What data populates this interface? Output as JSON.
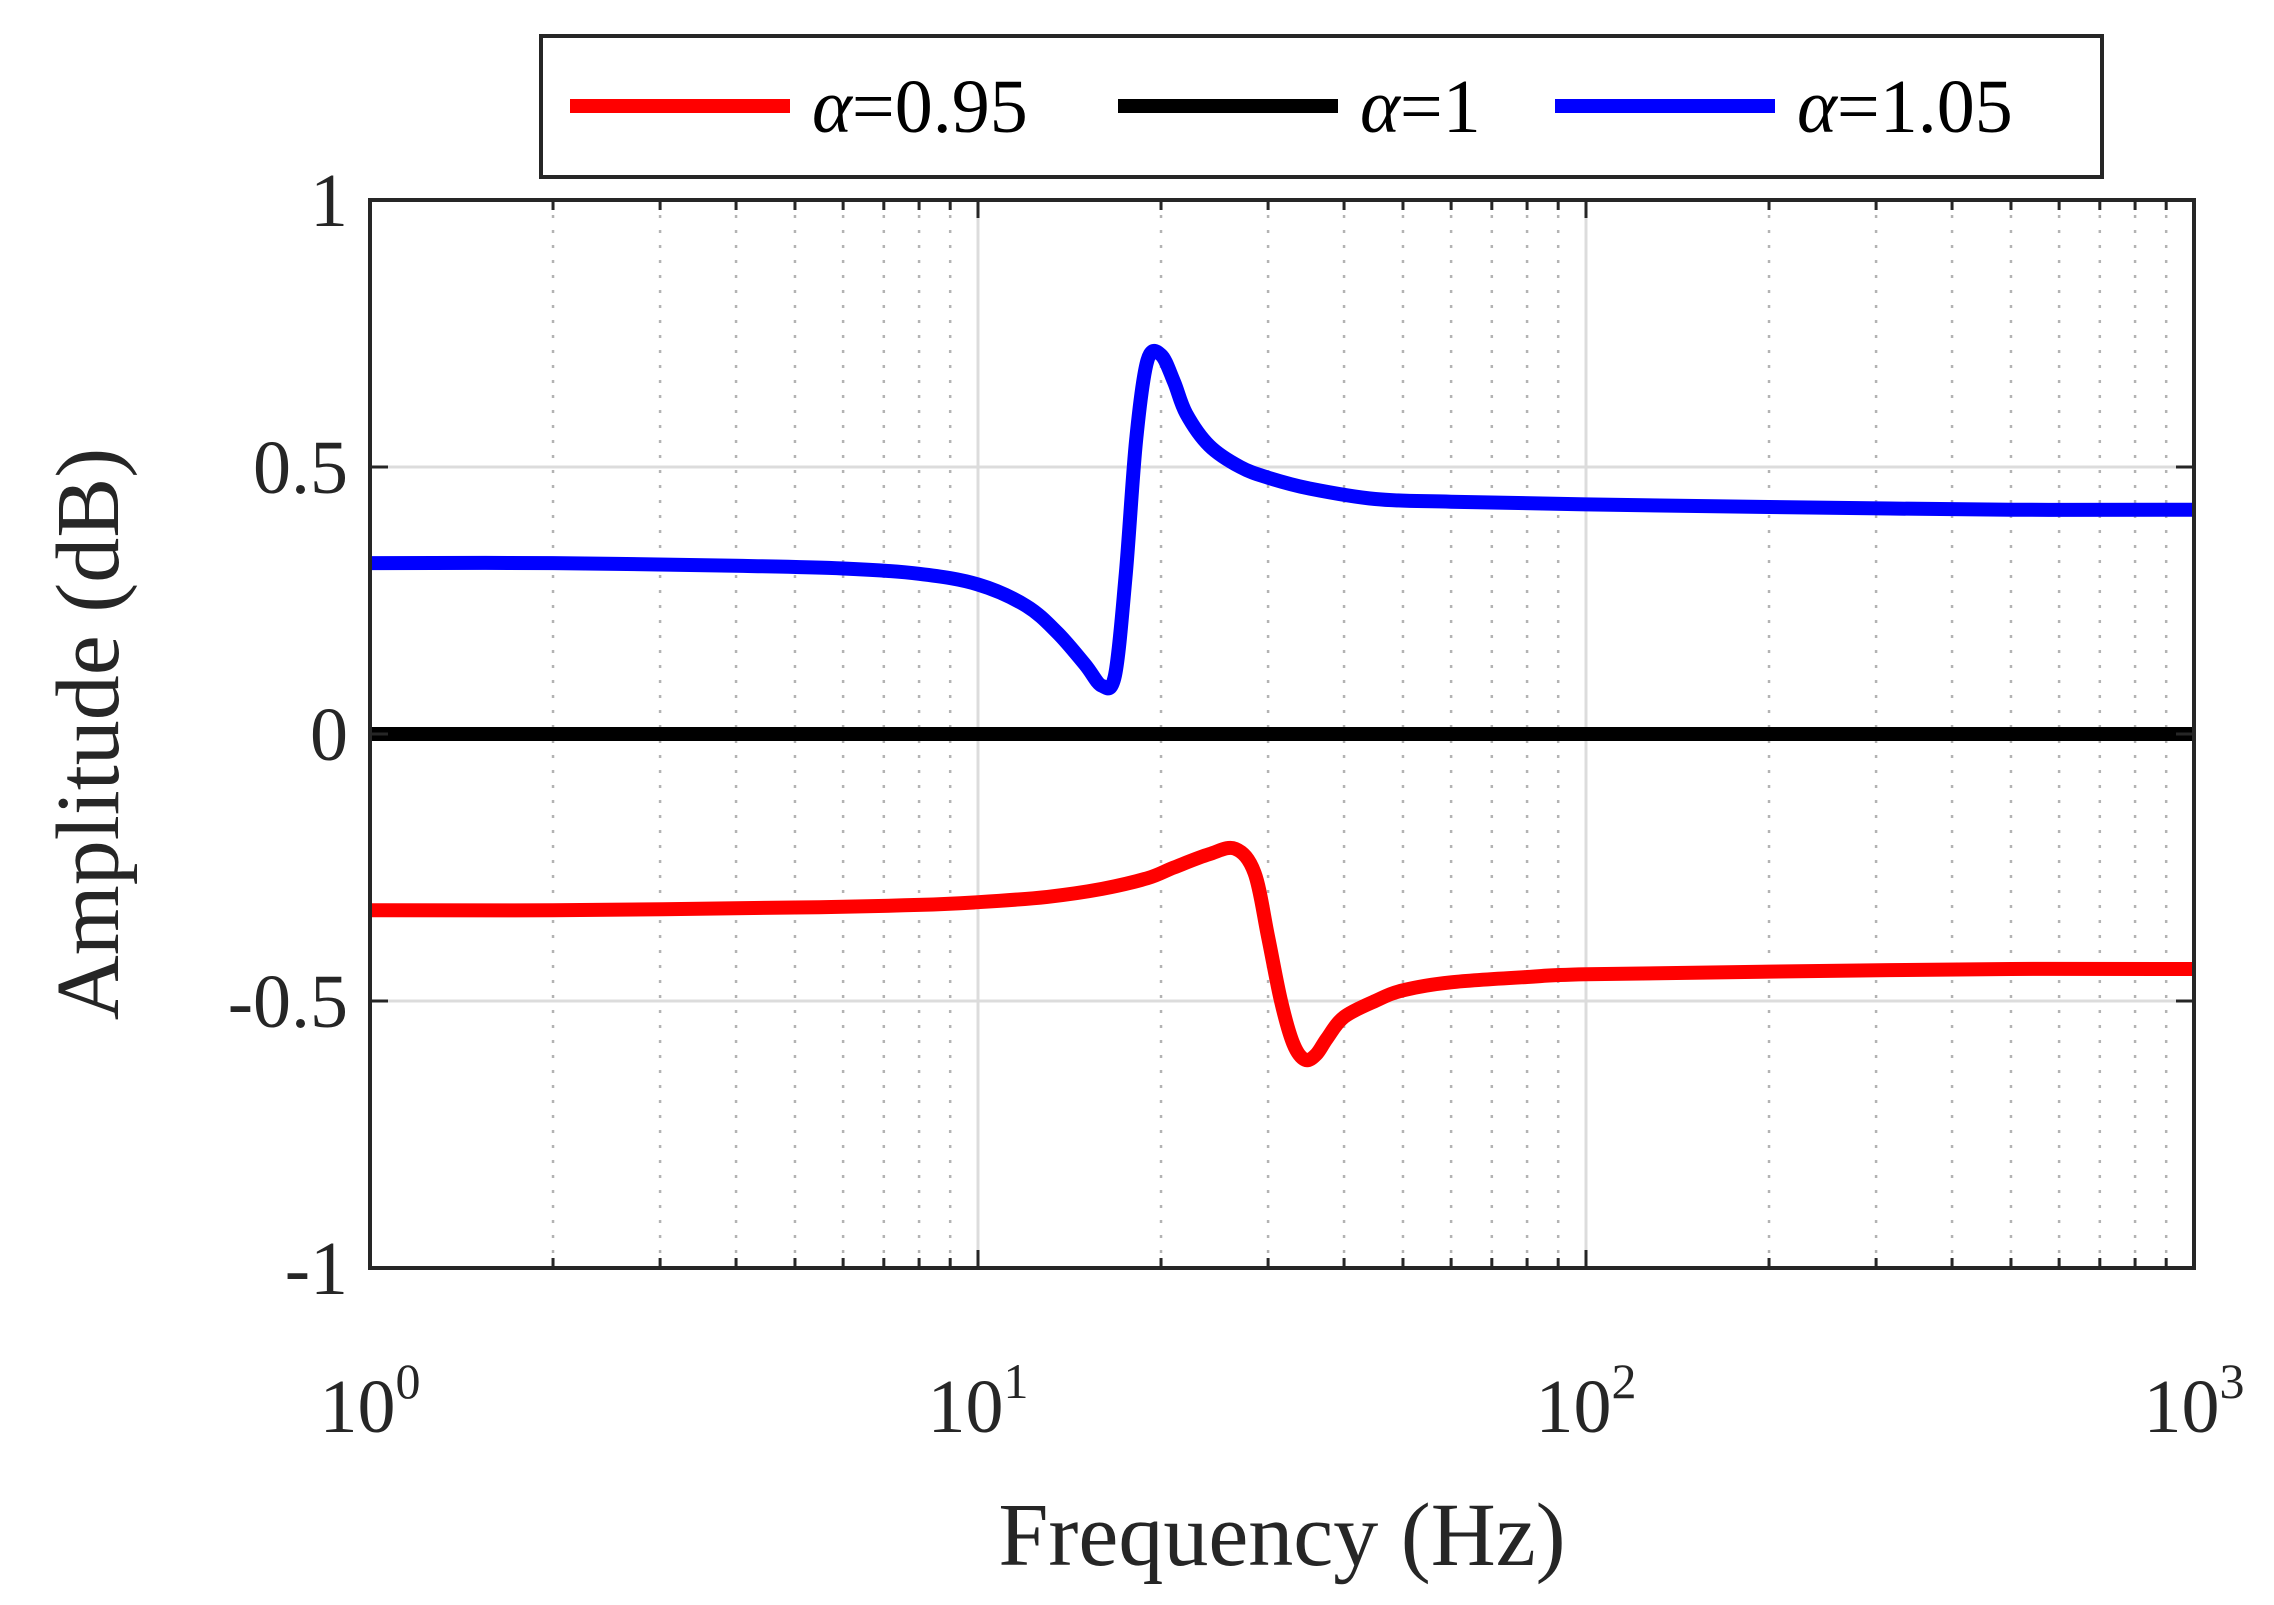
{
  "chart_data": {
    "type": "line",
    "xscale": "log",
    "xlim": [
      1,
      1000
    ],
    "ylim": [
      -1,
      1
    ],
    "xlabel": "Frequency (Hz)",
    "ylabel": "Amplitude (dB)",
    "x_ticks": [
      {
        "value": 1,
        "base": "10",
        "exp": "0"
      },
      {
        "value": 10,
        "base": "10",
        "exp": "1"
      },
      {
        "value": 100,
        "base": "10",
        "exp": "2"
      },
      {
        "value": 1000,
        "base": "10",
        "exp": "3"
      }
    ],
    "y_ticks": [
      {
        "value": 1,
        "label": "1"
      },
      {
        "value": 0.5,
        "label": "0.5"
      },
      {
        "value": 0,
        "label": "0"
      },
      {
        "value": -0.5,
        "label": "-0.5"
      },
      {
        "value": -1,
        "label": "-1"
      }
    ],
    "grid": true,
    "legend_position": "top-outside",
    "series": [
      {
        "name": "α=0.95",
        "symbol": "α",
        "value_text": "=0.95",
        "color": "#ff0000",
        "x": [
          1,
          2,
          5,
          8,
          10,
          13,
          16,
          19,
          21,
          24,
          26.5,
          28.5,
          30,
          31.5,
          33,
          34.5,
          36,
          37.5,
          40,
          45,
          50,
          60,
          80,
          100,
          200,
          500,
          1000
        ],
        "y": [
          -0.33,
          -0.33,
          -0.325,
          -0.32,
          -0.315,
          -0.305,
          -0.29,
          -0.27,
          -0.25,
          -0.225,
          -0.215,
          -0.26,
          -0.38,
          -0.5,
          -0.58,
          -0.61,
          -0.6,
          -0.57,
          -0.53,
          -0.5,
          -0.48,
          -0.465,
          -0.455,
          -0.45,
          -0.445,
          -0.44,
          -0.44
        ]
      },
      {
        "name": "α=1",
        "symbol": "α",
        "value_text": "=1",
        "color": "#000000",
        "x": [
          1,
          1000
        ],
        "y": [
          0,
          0
        ]
      },
      {
        "name": "α=1.05",
        "symbol": "α",
        "value_text": "=1.05",
        "color": "#0000ff",
        "x": [
          1,
          2,
          4,
          6,
          8,
          10,
          12,
          13.5,
          15,
          16,
          16.8,
          17.5,
          18.2,
          19,
          20,
          21,
          22,
          24,
          27,
          30,
          35,
          45,
          60,
          100,
          200,
          500,
          1000
        ],
        "y": [
          0.32,
          0.32,
          0.315,
          0.31,
          0.3,
          0.28,
          0.24,
          0.19,
          0.13,
          0.09,
          0.11,
          0.3,
          0.55,
          0.7,
          0.71,
          0.66,
          0.6,
          0.54,
          0.5,
          0.48,
          0.46,
          0.44,
          0.435,
          0.43,
          0.425,
          0.42,
          0.42
        ]
      }
    ]
  }
}
